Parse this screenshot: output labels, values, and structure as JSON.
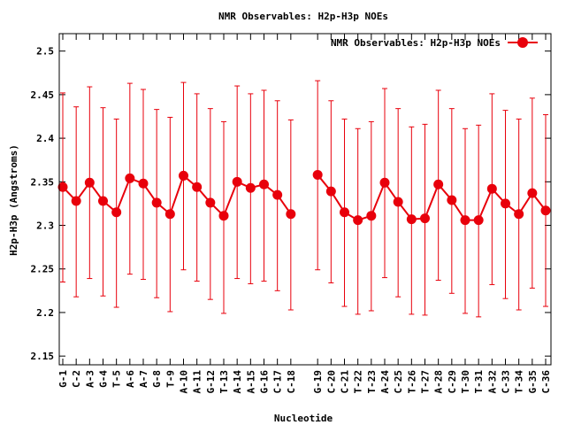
{
  "chart_data": {
    "type": "line",
    "title": "NMR Observables: H2p-H3p NOEs",
    "xlabel": "Nucleotide",
    "ylabel": "H2p-H3p (Angstroms)",
    "legend": {
      "label": "NMR Observables: H2p-H3p NOEs",
      "placement": "top-right"
    },
    "ylim": [
      2.14,
      2.52
    ],
    "yticks": [
      2.15,
      2.2,
      2.25,
      2.3,
      2.35,
      2.4,
      2.45,
      2.5
    ],
    "ytick_labels": [
      "2.15",
      "2.2",
      "2.25",
      "2.3",
      "2.35",
      "2.4",
      "2.45",
      "2.5"
    ],
    "x_range": [
      1,
      37
    ],
    "grid": false,
    "color": "#e8000b",
    "series": [
      {
        "name": "NMR Observables: H2p-H3p NOEs",
        "segments": [
          {
            "categories": [
              "G-1",
              "C-2",
              "A-3",
              "G-4",
              "T-5",
              "A-6",
              "A-7",
              "G-8",
              "T-9",
              "A-10",
              "A-11",
              "G-12",
              "T-13",
              "A-14",
              "A-15",
              "G-16",
              "C-17",
              "C-18"
            ],
            "x": [
              1,
              2,
              3,
              4,
              5,
              6,
              7,
              8,
              9,
              10,
              11,
              12,
              13,
              14,
              15,
              16,
              17,
              18
            ],
            "values": [
              2.344,
              2.328,
              2.349,
              2.328,
              2.315,
              2.354,
              2.348,
              2.326,
              2.313,
              2.357,
              2.344,
              2.326,
              2.311,
              2.35,
              2.343,
              2.347,
              2.335,
              2.313
            ],
            "err_low": [
              2.235,
              2.218,
              2.239,
              2.219,
              2.206,
              2.244,
              2.238,
              2.217,
              2.201,
              2.249,
              2.236,
              2.215,
              2.199,
              2.239,
              2.233,
              2.236,
              2.225,
              2.203
            ],
            "err_high": [
              2.452,
              2.436,
              2.459,
              2.435,
              2.422,
              2.463,
              2.456,
              2.433,
              2.424,
              2.464,
              2.451,
              2.434,
              2.419,
              2.46,
              2.451,
              2.455,
              2.443,
              2.421
            ]
          },
          {
            "categories": [
              "G-19",
              "C-20",
              "C-21",
              "T-22",
              "T-23",
              "A-24",
              "C-25",
              "T-26",
              "T-27",
              "A-28",
              "C-29",
              "T-30",
              "T-31",
              "A-32",
              "C-33",
              "T-34",
              "G-35",
              "C-36"
            ],
            "x": [
              20,
              21,
              22,
              23,
              24,
              25,
              26,
              27,
              28,
              29,
              30,
              31,
              32,
              33,
              34,
              35,
              36,
              37
            ],
            "values": [
              2.358,
              2.339,
              2.315,
              2.306,
              2.311,
              2.349,
              2.327,
              2.307,
              2.308,
              2.347,
              2.329,
              2.306,
              2.306,
              2.342,
              2.325,
              2.313,
              2.337,
              2.317
            ],
            "err_low": [
              2.249,
              2.234,
              2.207,
              2.198,
              2.202,
              2.24,
              2.218,
              2.198,
              2.197,
              2.237,
              2.222,
              2.199,
              2.195,
              2.232,
              2.216,
              2.203,
              2.228,
              2.207
            ],
            "err_high": [
              2.466,
              2.443,
              2.422,
              2.411,
              2.419,
              2.457,
              2.434,
              2.413,
              2.416,
              2.455,
              2.434,
              2.411,
              2.415,
              2.451,
              2.432,
              2.422,
              2.446,
              2.427
            ]
          }
        ]
      }
    ]
  }
}
